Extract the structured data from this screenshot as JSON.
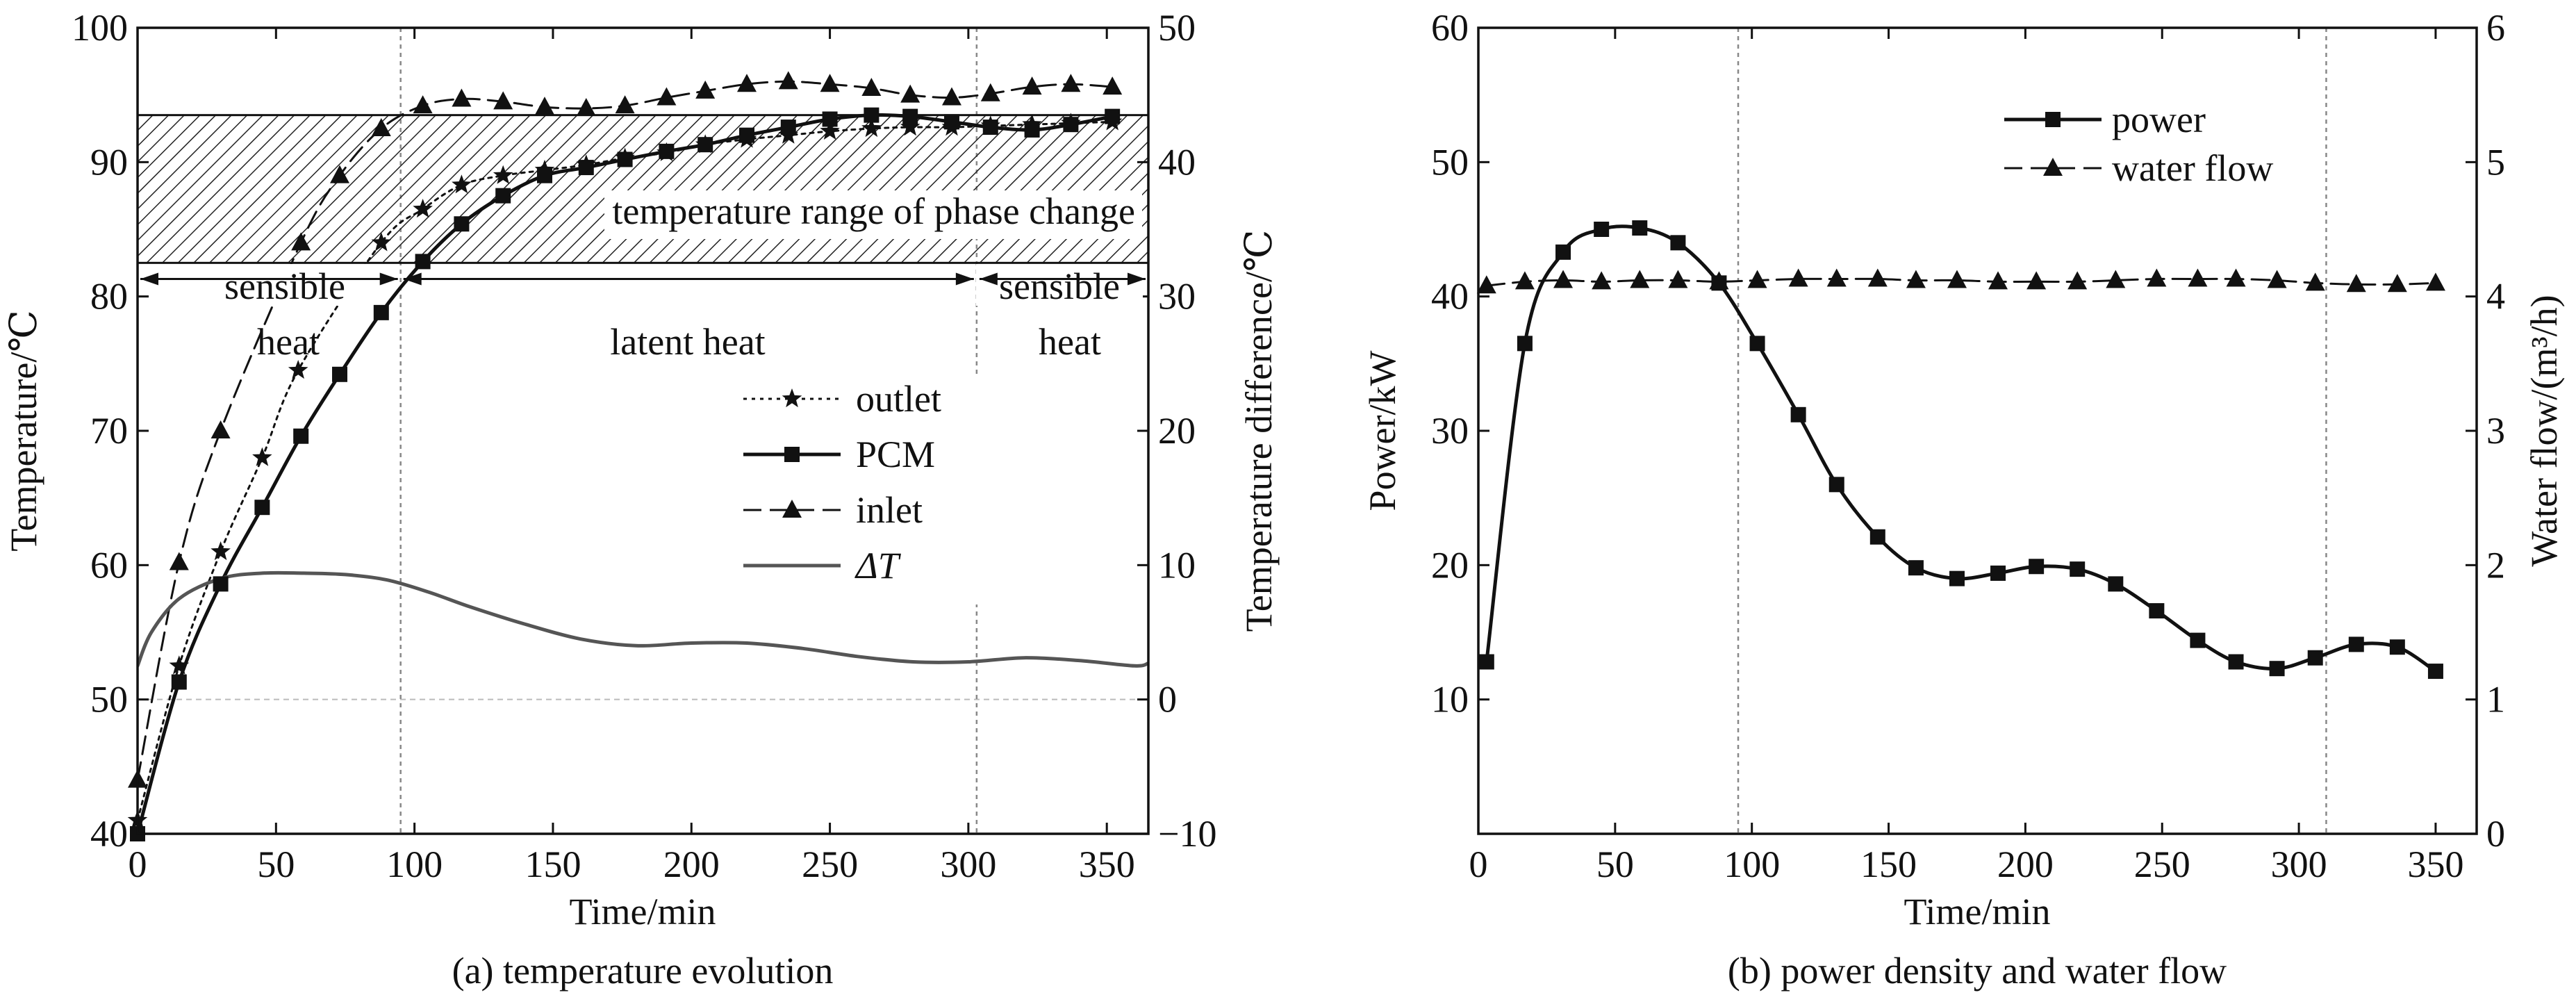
{
  "colors": {
    "ink": "#111111",
    "delta": "#555555",
    "guide": "#888888",
    "zero_line": "#bbbbbb"
  },
  "chart_data": [
    {
      "type": "line",
      "caption": "(a) temperature evolution",
      "xlabel": "Time/min",
      "ylabel": "Temperature/℃",
      "y2label": "Temperature difference/℃",
      "xlim": [
        0,
        365
      ],
      "ylim": [
        40,
        100
      ],
      "y2lim": [
        -10,
        50
      ],
      "x_ticks": [
        0,
        50,
        100,
        150,
        200,
        250,
        300,
        350
      ],
      "y_ticks": [
        40,
        50,
        60,
        70,
        80,
        90,
        100
      ],
      "y2_ticks": [
        -10,
        0,
        10,
        20,
        30,
        40,
        50
      ],
      "x_tick_labels": [
        "0",
        "50",
        "100",
        "150",
        "200",
        "250",
        "300",
        "350"
      ],
      "y_tick_labels": [
        "40",
        "50",
        "60",
        "70",
        "80",
        "90",
        "100"
      ],
      "y2_tick_labels": [
        "−10",
        "0",
        "10",
        "20",
        "30",
        "40",
        "50"
      ],
      "phase_band": {
        "y_min": 82.5,
        "y_max": 93.5,
        "label": "temperature range of phase change"
      },
      "vertical_guides": [
        95,
        303
      ],
      "region_labels": {
        "sensible_left_1": "sensible",
        "sensible_left_2": "heat",
        "latent": "latent heat",
        "sensible_right_1": "sensible",
        "sensible_right_2": "heat"
      },
      "region_arrows": [
        [
          0,
          95
        ],
        [
          95,
          303
        ],
        [
          303,
          365
        ]
      ],
      "region_arrow_y": 81.3,
      "legend": {
        "position": "right-middle",
        "entries": [
          "outlet",
          "PCM",
          "inlet",
          "ΔT"
        ]
      },
      "series": [
        {
          "name": "outlet",
          "axis": "left",
          "marker": "star",
          "dash": "dotted",
          "x": [
            0,
            15,
            30,
            45,
            58,
            88,
            103,
            117,
            132,
            147,
            162,
            176,
            191,
            205,
            220,
            235,
            250,
            265,
            279,
            294,
            308,
            323,
            337,
            352
          ],
          "y": [
            41,
            52.5,
            61,
            68,
            74.5,
            84,
            86.5,
            88.3,
            89,
            89.4,
            89.8,
            90.3,
            90.7,
            91.3,
            91.7,
            92,
            92.3,
            92.5,
            92.6,
            92.6,
            92.7,
            92.8,
            92.9,
            93
          ]
        },
        {
          "name": "PCM",
          "axis": "left",
          "marker": "square",
          "dash": "solid",
          "x": [
            0,
            15,
            30,
            45,
            59,
            73,
            88,
            103,
            117,
            132,
            147,
            162,
            176,
            191,
            205,
            220,
            235,
            250,
            265,
            279,
            294,
            308,
            323,
            337,
            352
          ],
          "y": [
            40,
            51.3,
            58.6,
            64.3,
            69.6,
            74.2,
            78.8,
            82.6,
            85.4,
            87.5,
            89,
            89.6,
            90.2,
            90.8,
            91.3,
            92,
            92.6,
            93.2,
            93.5,
            93.4,
            93,
            92.6,
            92.4,
            92.8,
            93.4
          ]
        },
        {
          "name": "inlet",
          "axis": "left",
          "marker": "triangle",
          "dash": "dashed",
          "x": [
            0,
            15,
            30,
            59,
            73,
            88,
            103,
            117,
            132,
            147,
            162,
            176,
            191,
            205,
            220,
            235,
            250,
            265,
            279,
            294,
            308,
            323,
            337,
            352
          ],
          "y": [
            44,
            60.2,
            70,
            84,
            89,
            92.5,
            94.2,
            94.7,
            94.5,
            94.1,
            94,
            94.2,
            94.8,
            95.3,
            95.8,
            96,
            95.8,
            95.5,
            95,
            94.8,
            95.1,
            95.6,
            95.8,
            95.6
          ]
        },
        {
          "name": "ΔT",
          "axis": "right",
          "marker": "none",
          "dash": "solid",
          "x": [
            0,
            5,
            15,
            30,
            45,
            60,
            75,
            90,
            105,
            120,
            140,
            160,
            180,
            200,
            220,
            240,
            260,
            280,
            300,
            320,
            340,
            360,
            365
          ],
          "y": [
            2.5,
            5,
            7.5,
            9,
            9.4,
            9.4,
            9.3,
            8.9,
            8,
            6.9,
            5.6,
            4.5,
            4,
            4.2,
            4.2,
            3.8,
            3.2,
            2.8,
            2.8,
            3.1,
            2.9,
            2.5,
            2.7
          ]
        }
      ]
    },
    {
      "type": "line",
      "caption": "(b) power density and water flow",
      "xlabel": "Time/min",
      "ylabel": "Power/kW",
      "y2label": "Water flow/(m³/h)",
      "xlim": [
        0,
        365
      ],
      "ylim": [
        0,
        60
      ],
      "y2lim": [
        0,
        6
      ],
      "x_ticks": [
        0,
        50,
        100,
        150,
        200,
        250,
        300,
        350
      ],
      "y_ticks": [
        10,
        20,
        30,
        40,
        50,
        60
      ],
      "y2_ticks": [
        0,
        1,
        2,
        3,
        4,
        5,
        6
      ],
      "x_tick_labels": [
        "0",
        "50",
        "100",
        "150",
        "200",
        "250",
        "300",
        "350"
      ],
      "y_tick_labels": [
        "10",
        "20",
        "30",
        "40",
        "50",
        "60"
      ],
      "y2_tick_labels": [
        "0",
        "1",
        "2",
        "3",
        "4",
        "5",
        "6"
      ],
      "vertical_guides": [
        95,
        310
      ],
      "legend": {
        "position": "top-right",
        "entries": [
          "power",
          "water flow"
        ]
      },
      "series": [
        {
          "name": "power",
          "axis": "left",
          "marker": "square",
          "dash": "solid",
          "x": [
            3,
            17,
            31,
            45,
            59,
            73,
            88,
            102,
            117,
            131,
            146,
            160,
            175,
            190,
            204,
            219,
            233,
            248,
            263,
            277,
            292,
            306,
            321,
            336,
            350
          ],
          "y": [
            12.8,
            36.5,
            43.3,
            45,
            45.1,
            44,
            41,
            36.5,
            31.2,
            26,
            22.1,
            19.8,
            19,
            19.4,
            19.9,
            19.7,
            18.6,
            16.6,
            14.4,
            12.8,
            12.3,
            13.1,
            14.1,
            13.9,
            12.1
          ]
        },
        {
          "name": "water flow",
          "axis": "right",
          "marker": "triangle",
          "dash": "dashed",
          "x": [
            3,
            17,
            31,
            45,
            59,
            73,
            88,
            102,
            117,
            131,
            146,
            160,
            175,
            190,
            204,
            219,
            233,
            248,
            263,
            277,
            292,
            306,
            321,
            336,
            350
          ],
          "y": [
            4.08,
            4.11,
            4.12,
            4.11,
            4.12,
            4.12,
            4.11,
            4.12,
            4.13,
            4.13,
            4.13,
            4.12,
            4.12,
            4.11,
            4.11,
            4.11,
            4.12,
            4.13,
            4.13,
            4.13,
            4.12,
            4.1,
            4.09,
            4.09,
            4.1
          ]
        }
      ]
    }
  ]
}
